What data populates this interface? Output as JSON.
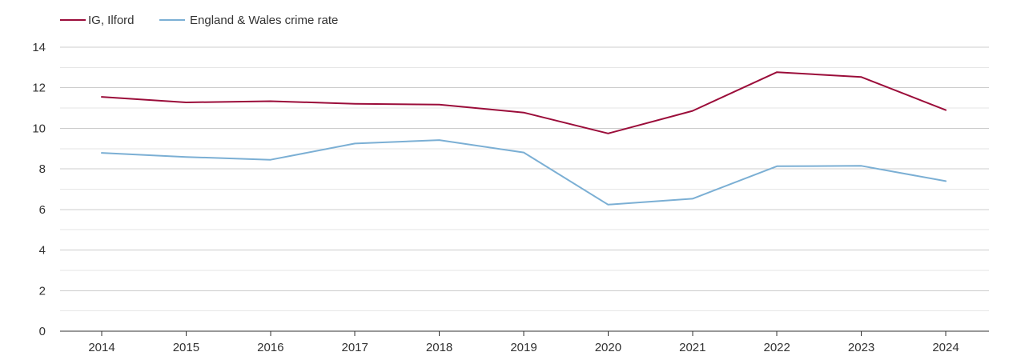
{
  "chart_data": {
    "type": "line",
    "categories": [
      "2014",
      "2015",
      "2016",
      "2017",
      "2018",
      "2019",
      "2020",
      "2021",
      "2022",
      "2023",
      "2024"
    ],
    "series": [
      {
        "name": "IG, Ilford",
        "color": "#9b0d3a",
        "values": [
          11.55,
          11.28,
          11.34,
          11.21,
          11.17,
          10.78,
          9.75,
          10.86,
          12.77,
          12.53,
          10.9
        ]
      },
      {
        "name": "England & Wales crime rate",
        "color": "#7bafd4",
        "values": [
          8.79,
          8.59,
          8.45,
          9.25,
          9.42,
          8.81,
          6.24,
          6.53,
          8.13,
          8.15,
          7.4
        ]
      }
    ],
    "ylim": [
      0,
      14
    ],
    "yticks": [
      "0",
      "2",
      "4",
      "6",
      "8",
      "10",
      "12",
      "14"
    ],
    "grid": true,
    "legend_position": "top-left",
    "title": "",
    "xlabel": "",
    "ylabel": ""
  }
}
